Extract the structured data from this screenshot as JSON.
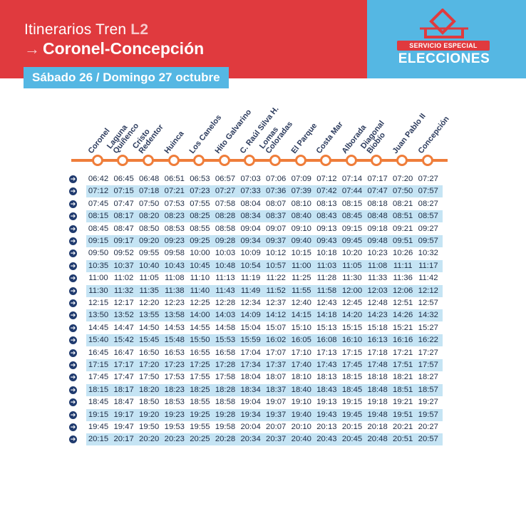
{
  "header": {
    "title_prefix": "Itinerarios Tren ",
    "line": "L2",
    "arrow": "→",
    "route": "Coronel-Concepción",
    "date": "Sábado 26 / Domingo 27 octubre"
  },
  "logo": {
    "subtitle": "SERVICIO ESPECIAL",
    "title": "ELECCIONES"
  },
  "colors": {
    "red": "#e03a3e",
    "blue": "#55b7e3",
    "orange_rail": "#ef7d3a",
    "row_shade": "#c5e4f4",
    "navy": "#1f3a6e"
  },
  "stations": [
    [
      "Coronel"
    ],
    [
      "Laguna",
      "Quiñenco"
    ],
    [
      "Cristo",
      "Redentor"
    ],
    [
      "Huinca"
    ],
    [
      "Los Canelos"
    ],
    [
      "Hito Galvarino"
    ],
    [
      "C. Raúl Silva H."
    ],
    [
      "Lomas",
      "Coloradas"
    ],
    [
      "El Parque"
    ],
    [
      "Costa Mar"
    ],
    [
      "Alborada"
    ],
    [
      "Diagonal",
      "Biobío"
    ],
    [
      "Juan Pablo II"
    ],
    [
      "Concepción"
    ]
  ],
  "row_icon": "➔",
  "schedule": [
    [
      "06:42",
      "06:45",
      "06:48",
      "06:51",
      "06:53",
      "06:57",
      "07:03",
      "07:06",
      "07:09",
      "07:12",
      "07:14",
      "07:17",
      "07:20",
      "07:27"
    ],
    [
      "07:12",
      "07:15",
      "07:18",
      "07:21",
      "07:23",
      "07:27",
      "07:33",
      "07:36",
      "07:39",
      "07:42",
      "07:44",
      "07:47",
      "07:50",
      "07:57"
    ],
    [
      "07:45",
      "07:47",
      "07:50",
      "07:53",
      "07:55",
      "07:58",
      "08:04",
      "08:07",
      "08:10",
      "08:13",
      "08:15",
      "08:18",
      "08:21",
      "08:27"
    ],
    [
      "08:15",
      "08:17",
      "08:20",
      "08:23",
      "08:25",
      "08:28",
      "08:34",
      "08:37",
      "08:40",
      "08:43",
      "08:45",
      "08:48",
      "08:51",
      "08:57"
    ],
    [
      "08:45",
      "08:47",
      "08:50",
      "08:53",
      "08:55",
      "08:58",
      "09:04",
      "09:07",
      "09:10",
      "09:13",
      "09:15",
      "09:18",
      "09:21",
      "09:27"
    ],
    [
      "09:15",
      "09:17",
      "09:20",
      "09:23",
      "09:25",
      "09:28",
      "09:34",
      "09:37",
      "09:40",
      "09:43",
      "09:45",
      "09:48",
      "09:51",
      "09:57"
    ],
    [
      "09:50",
      "09:52",
      "09:55",
      "09:58",
      "10:00",
      "10:03",
      "10:09",
      "10:12",
      "10:15",
      "10:18",
      "10:20",
      "10:23",
      "10:26",
      "10:32"
    ],
    [
      "10:35",
      "10:37",
      "10:40",
      "10:43",
      "10:45",
      "10:48",
      "10:54",
      "10:57",
      "11:00",
      "11:03",
      "11:05",
      "11:08",
      "11:11",
      "11:17"
    ],
    [
      "11:00",
      "11:02",
      "11:05",
      "11:08",
      "11:10",
      "11:13",
      "11:19",
      "11:22",
      "11:25",
      "11:28",
      "11:30",
      "11:33",
      "11:36",
      "11:42"
    ],
    [
      "11:30",
      "11:32",
      "11:35",
      "11:38",
      "11:40",
      "11:43",
      "11:49",
      "11:52",
      "11:55",
      "11:58",
      "12:00",
      "12:03",
      "12:06",
      "12:12"
    ],
    [
      "12:15",
      "12:17",
      "12:20",
      "12:23",
      "12:25",
      "12:28",
      "12:34",
      "12:37",
      "12:40",
      "12:43",
      "12:45",
      "12:48",
      "12:51",
      "12:57"
    ],
    [
      "13:50",
      "13:52",
      "13:55",
      "13:58",
      "14:00",
      "14:03",
      "14:09",
      "14:12",
      "14:15",
      "14:18",
      "14:20",
      "14:23",
      "14:26",
      "14:32"
    ],
    [
      "14:45",
      "14:47",
      "14:50",
      "14:53",
      "14:55",
      "14:58",
      "15:04",
      "15:07",
      "15:10",
      "15:13",
      "15:15",
      "15:18",
      "15:21",
      "15:27"
    ],
    [
      "15:40",
      "15:42",
      "15:45",
      "15:48",
      "15:50",
      "15:53",
      "15:59",
      "16:02",
      "16:05",
      "16:08",
      "16:10",
      "16:13",
      "16:16",
      "16:22"
    ],
    [
      "16:45",
      "16:47",
      "16:50",
      "16:53",
      "16:55",
      "16:58",
      "17:04",
      "17:07",
      "17:10",
      "17:13",
      "17:15",
      "17:18",
      "17:21",
      "17:27"
    ],
    [
      "17:15",
      "17:17",
      "17:20",
      "17:23",
      "17:25",
      "17:28",
      "17:34",
      "17:37",
      "17:40",
      "17:43",
      "17:45",
      "17:48",
      "17:51",
      "17:57"
    ],
    [
      "17:45",
      "17:47",
      "17:50",
      "17:53",
      "17:55",
      "17:58",
      "18:04",
      "18:07",
      "18:10",
      "18:13",
      "18:15",
      "18:18",
      "18:21",
      "18:27"
    ],
    [
      "18:15",
      "18:17",
      "18:20",
      "18:23",
      "18:25",
      "18:28",
      "18:34",
      "18:37",
      "18:40",
      "18:43",
      "18:45",
      "18:48",
      "18:51",
      "18:57"
    ],
    [
      "18:45",
      "18:47",
      "18:50",
      "18:53",
      "18:55",
      "18:58",
      "19:04",
      "19:07",
      "19:10",
      "19:13",
      "19:15",
      "19:18",
      "19:21",
      "19:27"
    ],
    [
      "19:15",
      "19:17",
      "19:20",
      "19:23",
      "19:25",
      "19:28",
      "19:34",
      "19:37",
      "19:40",
      "19:43",
      "19:45",
      "19:48",
      "19:51",
      "19:57"
    ],
    [
      "19:45",
      "19:47",
      "19:50",
      "19:53",
      "19:55",
      "19:58",
      "20:04",
      "20:07",
      "20:10",
      "20:13",
      "20:15",
      "20:18",
      "20:21",
      "20:27"
    ],
    [
      "20:15",
      "20:17",
      "20:20",
      "20:23",
      "20:25",
      "20:28",
      "20:34",
      "20:37",
      "20:40",
      "20:43",
      "20:45",
      "20:48",
      "20:51",
      "20:57"
    ]
  ]
}
